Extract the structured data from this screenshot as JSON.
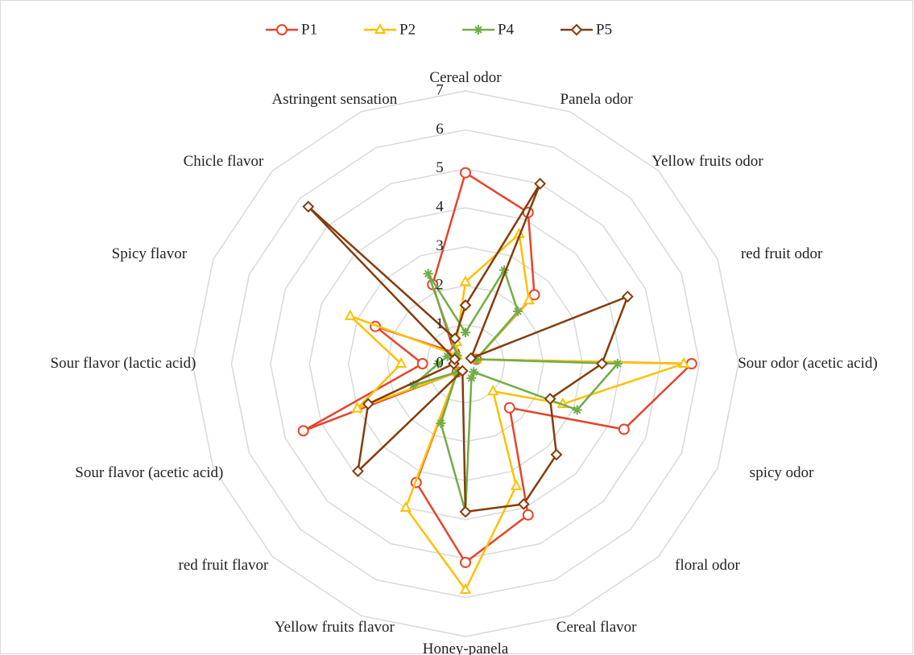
{
  "chart_data": {
    "type": "radar",
    "categories": [
      "Cereal odor",
      "Panela odor",
      "Yellow fruits odor",
      "red fruit odor",
      "Sour odor (acetic acid)",
      "spicy odor",
      "floral odor",
      "Cereal flavor",
      "Honey-panela",
      "Yellow fruits flavor",
      "red fruit flavor",
      "Sour flavor (acetic acid)",
      "Sour flavor (lactic acid)",
      "Spicy flavor",
      "Chicle flavor",
      "Astringent sensation"
    ],
    "series": [
      {
        "name": "P1",
        "color": "#e8432a",
        "marker": "circle",
        "values": [
          4.9,
          4.2,
          2.5,
          0.3,
          5.8,
          4.4,
          1.6,
          4.2,
          5.1,
          3.3,
          0.3,
          4.5,
          1.1,
          2.5,
          0.4,
          2.2
        ]
      },
      {
        "name": "P2",
        "color": "#ffc000",
        "marker": "triangle",
        "values": [
          2.1,
          3.6,
          2.3,
          0.3,
          5.6,
          2.7,
          1.0,
          3.4,
          5.8,
          4.0,
          0.3,
          3.0,
          1.65,
          3.2,
          0.3,
          0.6
        ]
      },
      {
        "name": "P4",
        "color": "#70ad47",
        "marker": "star",
        "values": [
          0.8,
          2.6,
          1.9,
          0.3,
          3.9,
          3.1,
          0.3,
          0.4,
          3.8,
          1.65,
          0.3,
          1.45,
          0.7,
          0.5,
          0.3,
          2.5
        ]
      },
      {
        "name": "P5",
        "color": "#843c0c",
        "marker": "diamond",
        "values": [
          1.5,
          5.0,
          0.2,
          4.5,
          3.5,
          2.35,
          3.3,
          3.9,
          3.8,
          0.2,
          3.9,
          2.7,
          0.3,
          0.3,
          5.7,
          0.7
        ]
      }
    ],
    "rlim": [
      0,
      7
    ],
    "rticks": [
      0,
      1,
      2,
      3,
      4,
      5,
      6,
      7
    ],
    "grid": true,
    "legend": "top"
  }
}
